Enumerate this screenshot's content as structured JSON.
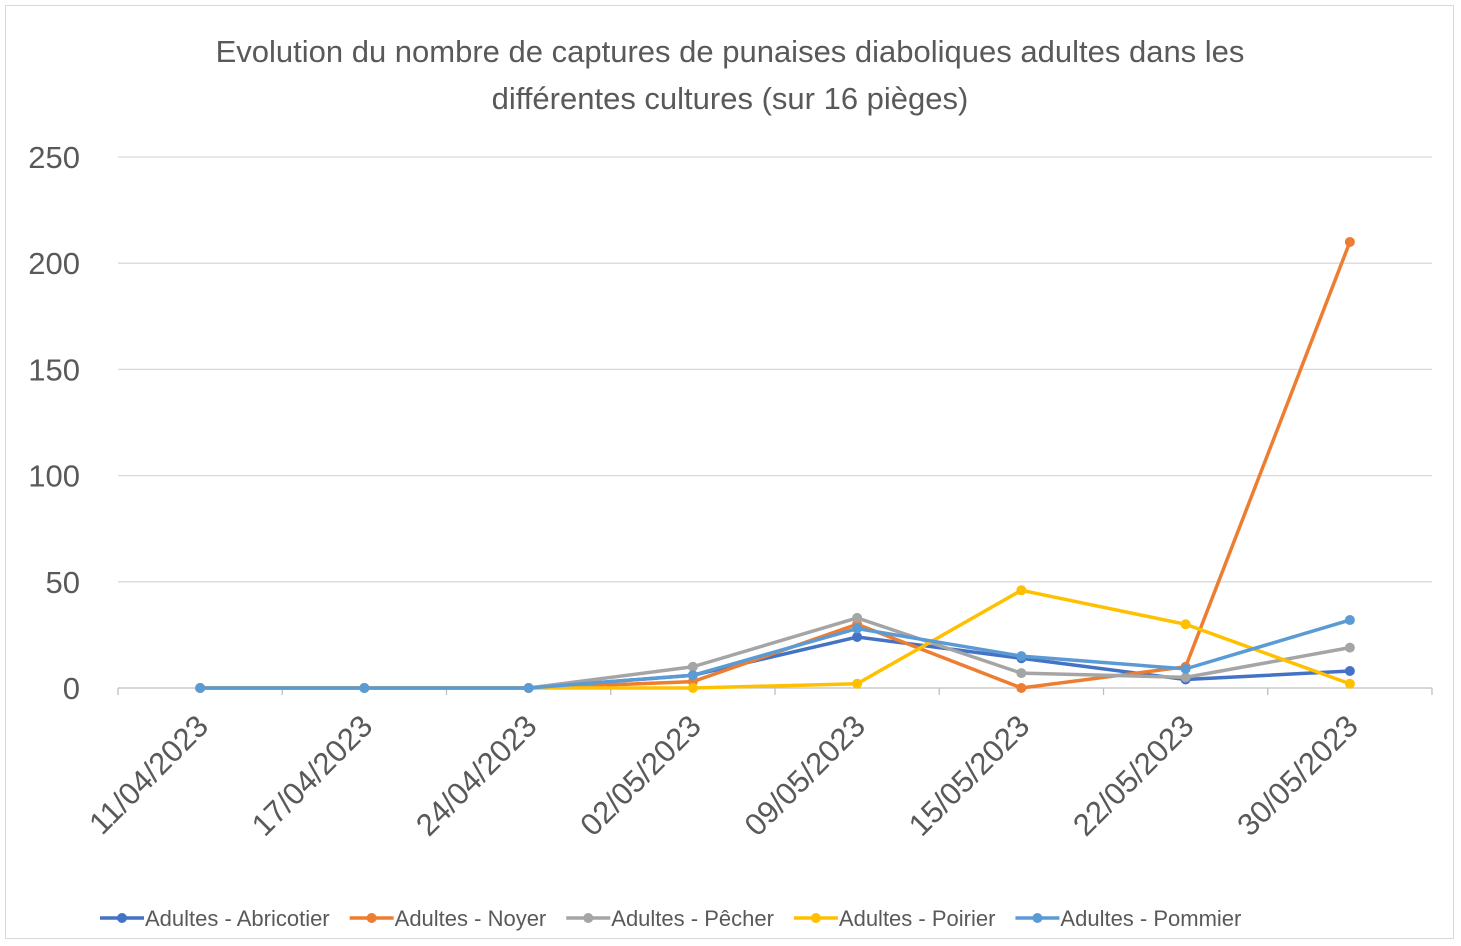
{
  "chart_data": {
    "type": "line",
    "title": "Evolution du nombre de captures de punaises diaboliques adultes dans les différentes cultures (sur 16 pièges)",
    "categories": [
      "11/04/2023",
      "17/04/2023",
      "24/04/2023",
      "02/05/2023",
      "09/05/2023",
      "15/05/2023",
      "22/05/2023",
      "30/05/2023"
    ],
    "series": [
      {
        "name": "Adultes - Abricotier",
        "color": "#4472c4",
        "values": [
          0,
          0,
          0,
          6,
          24,
          14,
          4,
          8
        ]
      },
      {
        "name": "Adultes - Noyer",
        "color": "#ed7d31",
        "values": [
          0,
          0,
          0,
          3,
          30,
          0,
          10,
          210
        ]
      },
      {
        "name": "Adultes - Pêcher",
        "color": "#a5a5a5",
        "values": [
          0,
          0,
          0,
          10,
          33,
          7,
          5,
          19
        ]
      },
      {
        "name": "Adultes - Poirier",
        "color": "#ffc000",
        "values": [
          0,
          0,
          0,
          0,
          2,
          46,
          30,
          2
        ]
      },
      {
        "name": "Adultes - Pommier",
        "color": "#5b9bd5",
        "values": [
          0,
          0,
          0,
          6,
          28,
          15,
          9,
          32
        ]
      }
    ],
    "ylim": [
      0,
      250
    ],
    "yticks": [
      0,
      50,
      100,
      150,
      200,
      250
    ],
    "grid": true,
    "legend": "bottom"
  }
}
